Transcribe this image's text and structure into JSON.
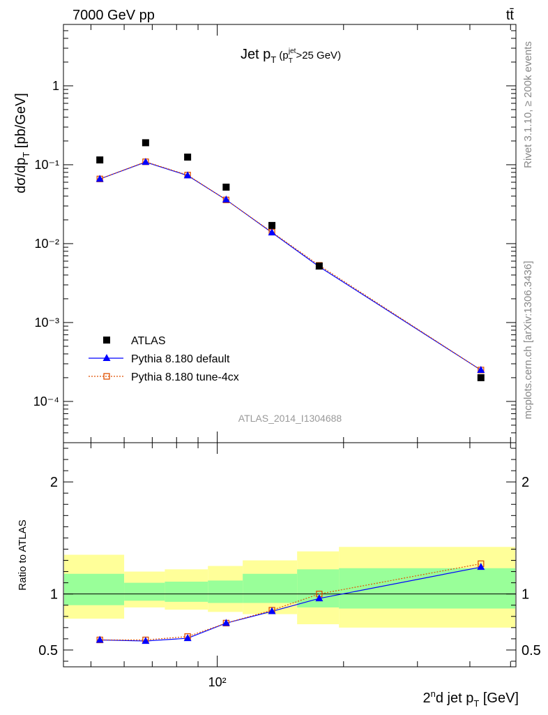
{
  "header": {
    "energy_label": "7000 GeV pp",
    "process_label": "tt̄"
  },
  "side_labels": {
    "rivet": "Rivet 3.1.10, ≥ 200k events",
    "mcplots": "mcplots.cern.ch [arXiv:1306.3436]"
  },
  "chart_data": [
    {
      "type": "scatter",
      "title": "Jet p_T (p_T^jet>25 GeV)",
      "ylabel": "dσ/dp_T [pb/GeV]",
      "yscale": "log",
      "xscale": "log",
      "xlim": [
        43,
        515
      ],
      "ylim": [
        3e-05,
        6
      ],
      "watermark": "ATLAS_2014_I1304688",
      "y_ticks": [
        "10⁻⁴",
        "10⁻³",
        "10⁻²",
        "10⁻¹",
        "1"
      ],
      "legend": {
        "placement": "bottom-left"
      },
      "x": [
        52.5,
        67.5,
        85,
        105,
        135,
        175,
        425
      ],
      "series": [
        {
          "name": "ATLAS",
          "color": "#000000",
          "marker": "square",
          "values": [
            0.115,
            0.19,
            0.125,
            0.052,
            0.017,
            0.0052,
            0.0002
          ]
        },
        {
          "name": "Pythia 8.180 default",
          "color": "#0000ff",
          "marker": "triangle",
          "line": "solid",
          "values": [
            0.066,
            0.108,
            0.073,
            0.036,
            0.0138,
            0.0051,
            0.00025
          ]
        },
        {
          "name": "Pythia 8.180 tune-4cx",
          "color": "#e05000",
          "marker": "open-square",
          "line": "dotted",
          "values": [
            0.066,
            0.109,
            0.074,
            0.0358,
            0.014,
            0.0053,
            0.00025
          ]
        }
      ]
    },
    {
      "type": "line",
      "ylabel": "Ratio to ATLAS",
      "xlabel": "2nd jet p_T [GeV]",
      "xscale": "log",
      "ylim": [
        0.35,
        2.35
      ],
      "y_ticks": [
        "0.5",
        "1",
        "2"
      ],
      "x_ticks": [
        "10²"
      ],
      "reference_line": 1,
      "bands": {
        "edges": [
          43,
          60,
          75,
          95,
          115,
          155,
          195,
          515
        ],
        "inner_color": "#99ff99",
        "outer_color": "#ffff99",
        "inner": [
          [
            0.9,
            1.18
          ],
          [
            0.94,
            1.1
          ],
          [
            0.93,
            1.11
          ],
          [
            0.92,
            1.12
          ],
          [
            0.92,
            1.18
          ],
          [
            0.88,
            1.22
          ],
          [
            0.87,
            1.23
          ]
        ],
        "outer": [
          [
            0.78,
            1.35
          ],
          [
            0.88,
            1.2
          ],
          [
            0.86,
            1.22
          ],
          [
            0.84,
            1.25
          ],
          [
            0.82,
            1.3
          ],
          [
            0.73,
            1.38
          ],
          [
            0.7,
            1.42
          ]
        ]
      },
      "x": [
        52.5,
        67.5,
        85,
        105,
        135,
        175,
        425
      ],
      "series": [
        {
          "name": "Pythia 8.180 default",
          "color": "#0000ff",
          "marker": "triangle",
          "line": "solid",
          "values": [
            0.59,
            0.58,
            0.605,
            0.74,
            0.845,
            0.96,
            1.24
          ]
        },
        {
          "name": "Pythia 8.180 tune-4cx",
          "color": "#e05000",
          "marker": "open-square",
          "line": "dotted",
          "values": [
            0.59,
            0.59,
            0.62,
            0.74,
            0.855,
            1.0,
            1.27
          ]
        }
      ]
    }
  ]
}
